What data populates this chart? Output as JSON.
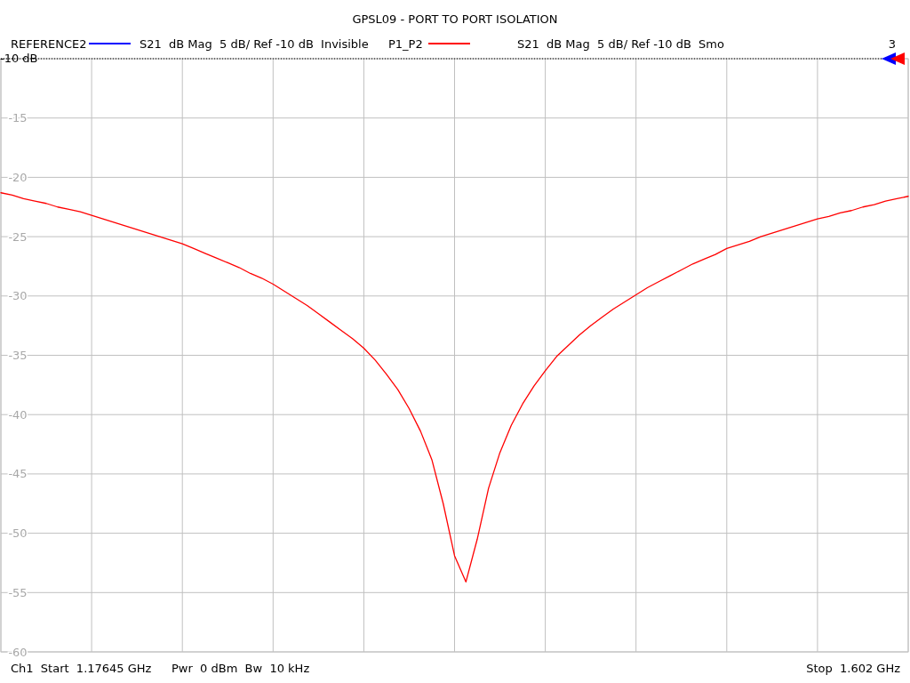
{
  "chart_data": {
    "type": "line",
    "title": "GPSL09 - PORT TO PORT ISOLATION",
    "categories": [
      null,
      null,
      null,
      null,
      null,
      null,
      null,
      null,
      null,
      null,
      null,
      null,
      null,
      null,
      null,
      null,
      null,
      null,
      null,
      null,
      null,
      null,
      null,
      null,
      null,
      null,
      null,
      null,
      null,
      null,
      null,
      null,
      null,
      null,
      null,
      null,
      null,
      null,
      null,
      null,
      null,
      null,
      null,
      null,
      null,
      null,
      null,
      null,
      null,
      null,
      null,
      null,
      null,
      null,
      null,
      null,
      null,
      null,
      null,
      null,
      null,
      null,
      null,
      null,
      null,
      null,
      null,
      null,
      null,
      null,
      null,
      null,
      null,
      null,
      null,
      null,
      null,
      null,
      null,
      null,
      null
    ],
    "series": [
      {
        "name": "REFERENCE2",
        "color": "#0000ff",
        "values": [
          null,
          null,
          null,
          null,
          null,
          null,
          null,
          null,
          null,
          null,
          null,
          null,
          null,
          null,
          null,
          null,
          null,
          null,
          null,
          null,
          null,
          null,
          null,
          null,
          null,
          null,
          null,
          null,
          null,
          null,
          null,
          null,
          null,
          null,
          null,
          null,
          null,
          null,
          null,
          null,
          null,
          null,
          null,
          null,
          null,
          null,
          null,
          null,
          null,
          null,
          null,
          null,
          null,
          null,
          null,
          null,
          null,
          null,
          null,
          null,
          null,
          null,
          null,
          null,
          null,
          null,
          null,
          null,
          null,
          null,
          null,
          null,
          null,
          null,
          null,
          null,
          null,
          null,
          null,
          null,
          null
        ]
      },
      {
        "name": "P1_P2",
        "color": "#ff0000",
        "values": [
          -21.3,
          -21.5,
          -21.8,
          -22.0,
          -22.2,
          -22.5,
          -22.7,
          -22.9,
          -23.2,
          -23.5,
          -23.8,
          -24.1,
          -24.4,
          -24.7,
          -25.0,
          -25.3,
          -25.6,
          -26.0,
          -26.4,
          -26.8,
          -27.2,
          -27.6,
          -28.1,
          -28.5,
          -29.0,
          -29.6,
          -30.2,
          -30.8,
          -31.5,
          -32.2,
          -32.9,
          -33.6,
          -34.4,
          -35.4,
          -36.6,
          -37.9,
          -39.5,
          -41.4,
          -43.8,
          -47.5,
          -51.9,
          -54.1,
          -50.5,
          -46.2,
          -43.2,
          -40.9,
          -39.1,
          -37.6,
          -36.3,
          -35.1,
          -34.2,
          -33.3,
          -32.5,
          -31.8,
          -31.1,
          -30.5,
          -29.9,
          -29.3,
          -28.8,
          -28.3,
          -27.8,
          -27.3,
          -26.9,
          -26.5,
          -26.0,
          -25.7,
          -25.4,
          -25.0,
          -24.7,
          -24.4,
          -24.1,
          -23.8,
          -23.5,
          -23.3,
          -23.0,
          -22.8,
          -22.5,
          -22.3,
          -22.0,
          -21.8,
          -21.6
        ]
      }
    ],
    "ylim": [
      -60,
      -10
    ],
    "yticks": [
      {
        "value": -10,
        "label": null
      },
      -15,
      -20,
      -25,
      -30,
      -35,
      -40,
      -45,
      -50,
      -55,
      -60
    ],
    "tick_labels": "y",
    "grid": true,
    "legend": "top",
    "marker": "none",
    "line_style": "solid",
    "ref_lines": [
      {
        "axis": "y",
        "value": -10,
        "label": "-10 dB",
        "color": "#000000",
        "line_style": "dotted"
      }
    ],
    "annotations": [
      "S21  dB Mag  5 dB/ Ref -10 dB  Invisible",
      "S21  dB Mag  5 dB/ Ref -10 dB  Smo",
      "3",
      "Ch1  Start  1.17645 GHz",
      "Pwr  0 dBm  Bw  10 kHz",
      "Stop  1.602 GHz"
    ]
  }
}
